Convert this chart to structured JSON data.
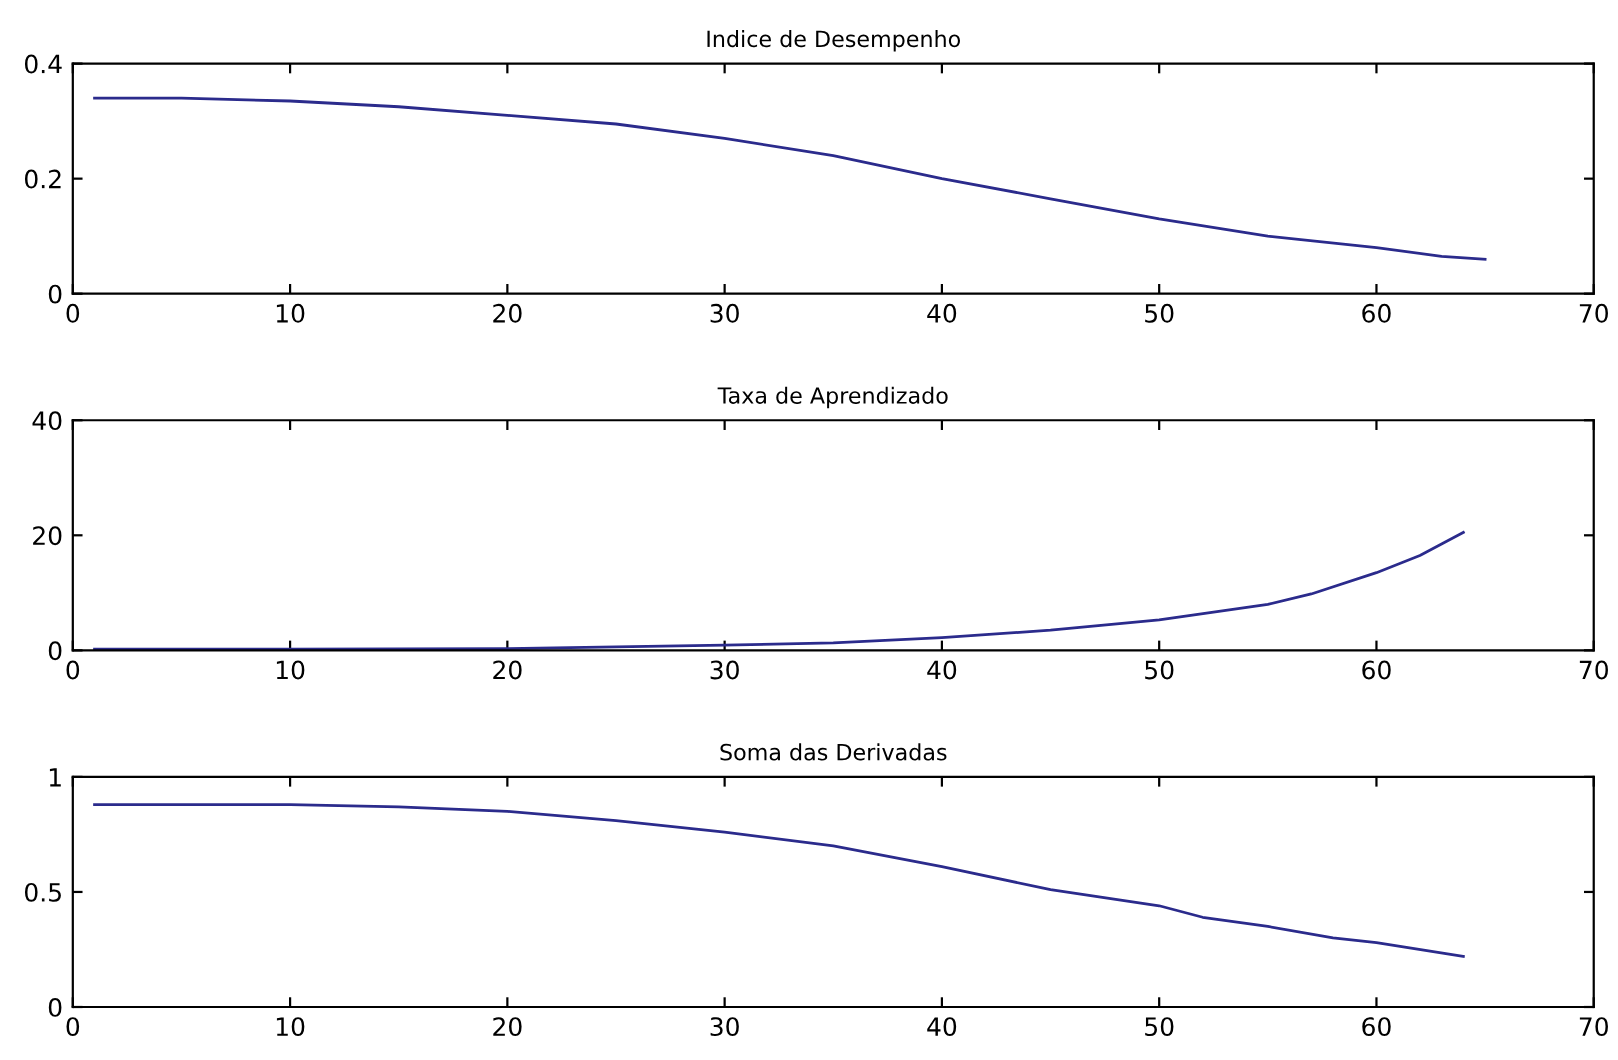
{
  "chart_data": [
    {
      "type": "line",
      "title": "Indice de Desempenho",
      "x": [
        1,
        5,
        10,
        15,
        20,
        25,
        30,
        35,
        40,
        45,
        50,
        55,
        60,
        63,
        65
      ],
      "series": [
        {
          "color": "#2b2b8c",
          "values": [
            0.34,
            0.34,
            0.335,
            0.325,
            0.31,
            0.295,
            0.27,
            0.24,
            0.2,
            0.165,
            0.13,
            0.1,
            0.08,
            0.065,
            0.06
          ]
        }
      ],
      "xlim": [
        0,
        70
      ],
      "xticks": [
        0,
        10,
        20,
        30,
        40,
        50,
        60,
        70
      ],
      "ylim": [
        0,
        0.4
      ],
      "yticks": [
        0,
        0.2,
        0.4
      ],
      "grid": false
    },
    {
      "type": "line",
      "title": "Taxa de Aprendizado",
      "x": [
        1,
        10,
        20,
        25,
        30,
        35,
        40,
        45,
        50,
        55,
        57,
        60,
        62,
        64
      ],
      "series": [
        {
          "color": "#2b2b8c",
          "values": [
            0.2,
            0.2,
            0.3,
            0.6,
            0.9,
            1.3,
            2.2,
            3.5,
            5.3,
            8,
            9.8,
            13.5,
            16.5,
            20.5
          ]
        }
      ],
      "xlim": [
        0,
        70
      ],
      "xticks": [
        0,
        10,
        20,
        30,
        40,
        50,
        60,
        70
      ],
      "ylim": [
        0,
        40
      ],
      "yticks": [
        0,
        20,
        40
      ],
      "grid": false
    },
    {
      "type": "line",
      "title": "Soma das Derivadas",
      "x": [
        1,
        10,
        15,
        20,
        25,
        30,
        35,
        40,
        45,
        50,
        52,
        55,
        58,
        60,
        64
      ],
      "series": [
        {
          "color": "#2b2b8c",
          "values": [
            0.88,
            0.88,
            0.87,
            0.85,
            0.81,
            0.76,
            0.7,
            0.61,
            0.51,
            0.44,
            0.39,
            0.35,
            0.3,
            0.28,
            0.22
          ]
        }
      ],
      "xlim": [
        0,
        70
      ],
      "xticks": [
        0,
        10,
        20,
        30,
        40,
        50,
        60,
        70
      ],
      "ylim": [
        0,
        1
      ],
      "yticks": [
        0,
        0.5,
        1
      ],
      "grid": false
    }
  ]
}
